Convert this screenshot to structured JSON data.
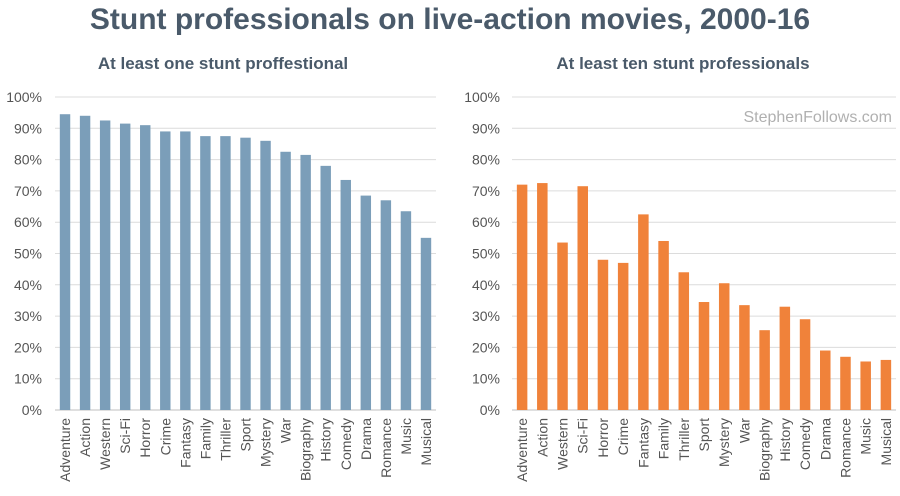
{
  "title": "Stunt professionals on live-action movies, 2000-16",
  "watermark": "StephenFollows.com",
  "colors": {
    "title": "#4a5a6a",
    "left_bars": "#7b9eb9",
    "right_bars": "#f0823a",
    "grid": "#dcdcdc",
    "axis_text": "#555555",
    "watermark": "#b0b0b0"
  },
  "chart_data": [
    {
      "type": "bar",
      "title": "At least one stunt proffestional",
      "categories": [
        "Adventure",
        "Action",
        "Western",
        "Sci-Fi",
        "Horror",
        "Crime",
        "Fantasy",
        "Family",
        "Thriller",
        "Sport",
        "Mystery",
        "War",
        "Biography",
        "History",
        "Comedy",
        "Drama",
        "Romance",
        "Music",
        "Musical"
      ],
      "values": [
        94.5,
        94,
        92.5,
        91.5,
        91,
        89,
        89,
        87.5,
        87.5,
        87,
        86,
        82.5,
        81.5,
        78,
        73.5,
        68.5,
        67,
        63.5,
        55
      ],
      "ylim": [
        0,
        100
      ],
      "yticks": [
        "0%",
        "10%",
        "20%",
        "30%",
        "40%",
        "50%",
        "60%",
        "70%",
        "80%",
        "90%",
        "100%"
      ],
      "grid": true
    },
    {
      "type": "bar",
      "title": "At least ten stunt professionals",
      "categories": [
        "Adventure",
        "Action",
        "Western",
        "Sci-Fi",
        "Horror",
        "Crime",
        "Fantasy",
        "Family",
        "Thriller",
        "Sport",
        "Mystery",
        "War",
        "Biography",
        "History",
        "Comedy",
        "Drama",
        "Romance",
        "Music",
        "Musical"
      ],
      "values": [
        72,
        72.5,
        53.5,
        71.5,
        48,
        47,
        62.5,
        54,
        44,
        34.5,
        40.5,
        33.5,
        25.5,
        33,
        29,
        19,
        17,
        15.5,
        16
      ],
      "ylim": [
        0,
        100
      ],
      "yticks": [
        "0%",
        "10%",
        "20%",
        "30%",
        "40%",
        "50%",
        "60%",
        "70%",
        "80%",
        "90%",
        "100%"
      ],
      "grid": true
    }
  ]
}
